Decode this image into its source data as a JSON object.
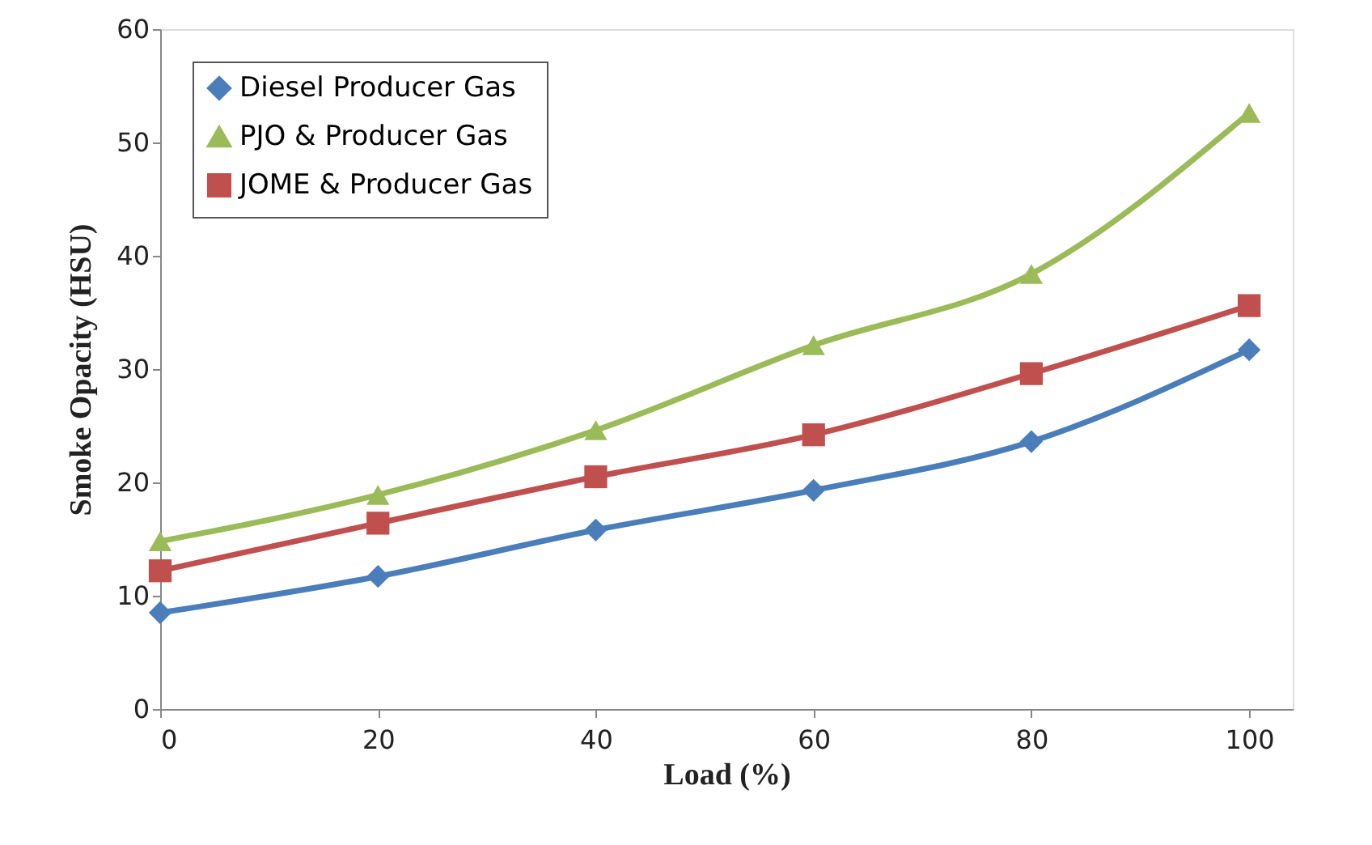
{
  "chart_data": {
    "type": "line",
    "xlabel": "Load (%)",
    "ylabel": "Smoke Opacity (HSU)",
    "x": [
      0,
      20,
      40,
      60,
      80,
      100
    ],
    "series": [
      {
        "name": "Diesel Producer Gas",
        "color": "#4a7ebb",
        "marker": "diamond",
        "values": [
          8.5,
          11.7,
          15.8,
          19.3,
          23.6,
          31.7
        ]
      },
      {
        "name": "PJO & Producer Gas",
        "color": "#9bbb59",
        "marker": "triangle",
        "values": [
          14.8,
          18.9,
          24.6,
          32.1,
          38.4,
          52.6
        ]
      },
      {
        "name": "JOME & Producer Gas",
        "color": "#c0504d",
        "marker": "square",
        "values": [
          12.2,
          16.4,
          20.5,
          24.2,
          29.6,
          35.6
        ]
      }
    ],
    "xlim": [
      0,
      104
    ],
    "xticks": [
      0,
      20,
      40,
      60,
      80,
      100
    ],
    "ylim": [
      0,
      60
    ],
    "yticks": [
      0,
      10,
      20,
      30,
      40,
      50,
      60
    ],
    "grid": false,
    "legend": "top left",
    "line_style": "solid"
  }
}
